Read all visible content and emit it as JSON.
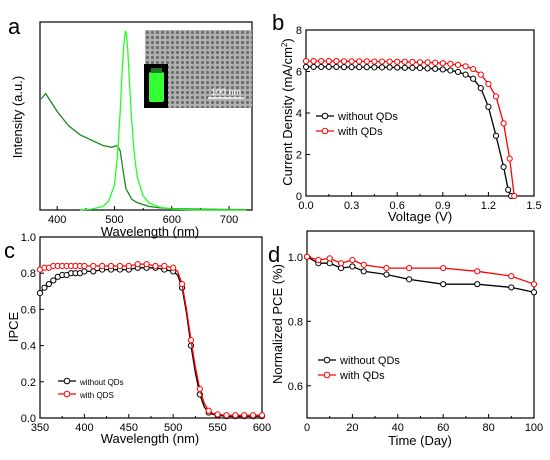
{
  "colors": {
    "emission": "#22ff22",
    "absorption": "#1a8a1a",
    "black_series": "#000000",
    "red_series": "#ff0000",
    "inset_glow": "#33ff33"
  },
  "panels": {
    "a": {
      "letter": "a",
      "inset_scale_label": "100 nm"
    },
    "b": {
      "letter": "b"
    },
    "c": {
      "letter": "c"
    },
    "d": {
      "letter": "d"
    }
  },
  "chart_data": [
    {
      "id": "a",
      "type": "line",
      "xlabel": "Wavelength (nm)",
      "ylabel": "Intensity (a.u.)",
      "xlim": [
        370,
        740
      ],
      "ylim": [
        0,
        1.05
      ],
      "xticks": [
        400,
        500,
        600,
        700
      ],
      "yticks": [],
      "series": [
        {
          "color_key": "absorption",
          "x": [
            372,
            380,
            390,
            400,
            420,
            440,
            460,
            480,
            495,
            505,
            510,
            515,
            520,
            530,
            540,
            560,
            580,
            600,
            650,
            700,
            730
          ],
          "y": [
            0.62,
            0.65,
            0.6,
            0.55,
            0.47,
            0.42,
            0.39,
            0.36,
            0.35,
            0.36,
            0.33,
            0.22,
            0.12,
            0.06,
            0.04,
            0.02,
            0.012,
            0.008,
            0.005,
            0.003,
            0.002
          ]
        },
        {
          "color_key": "emission",
          "x": [
            440,
            460,
            480,
            490,
            500,
            505,
            510,
            513,
            516,
            519,
            521,
            523,
            526,
            530,
            535,
            540,
            550,
            560,
            580,
            600,
            650,
            730
          ],
          "y": [
            0.0,
            0.005,
            0.02,
            0.05,
            0.14,
            0.3,
            0.55,
            0.75,
            0.92,
            1.0,
            0.98,
            0.9,
            0.72,
            0.5,
            0.3,
            0.18,
            0.08,
            0.04,
            0.015,
            0.005,
            0.0,
            0.0
          ]
        }
      ]
    },
    {
      "id": "b",
      "type": "line",
      "xlabel": "Voltage (V)",
      "ylabel": "Current Density (mA/cm",
      "ylabel_sup": "2",
      "ylabel_end": ")",
      "xlim": [
        0,
        1.5
      ],
      "ylim": [
        0,
        8
      ],
      "xticks": [
        0.0,
        0.3,
        0.6,
        0.9,
        1.2,
        1.5
      ],
      "xtick_labels": [
        "0.0",
        "0.3",
        "0.6",
        "0.9",
        "1.2",
        "1.5"
      ],
      "yticks": [
        0,
        2,
        4,
        6,
        8
      ],
      "legend": "center-left",
      "series": [
        {
          "name": "without QDs",
          "color_key": "black_series",
          "x": [
            0,
            0.05,
            0.1,
            0.15,
            0.2,
            0.25,
            0.3,
            0.35,
            0.4,
            0.45,
            0.5,
            0.55,
            0.6,
            0.65,
            0.7,
            0.75,
            0.8,
            0.85,
            0.9,
            0.95,
            1.0,
            1.05,
            1.1,
            1.15,
            1.2,
            1.25,
            1.3,
            1.33,
            1.35
          ],
          "y": [
            6.22,
            6.22,
            6.22,
            6.22,
            6.22,
            6.21,
            6.21,
            6.21,
            6.21,
            6.2,
            6.2,
            6.2,
            6.19,
            6.18,
            6.18,
            6.17,
            6.15,
            6.13,
            6.1,
            6.05,
            5.98,
            5.85,
            5.65,
            5.2,
            4.3,
            2.9,
            1.4,
            0.3,
            0
          ]
        },
        {
          "name": "with QDs",
          "color_key": "red_series",
          "x": [
            0,
            0.05,
            0.1,
            0.15,
            0.2,
            0.25,
            0.3,
            0.35,
            0.4,
            0.45,
            0.5,
            0.55,
            0.6,
            0.65,
            0.7,
            0.75,
            0.8,
            0.85,
            0.9,
            0.95,
            1.0,
            1.05,
            1.1,
            1.15,
            1.2,
            1.25,
            1.3,
            1.34,
            1.37
          ],
          "y": [
            6.5,
            6.5,
            6.5,
            6.5,
            6.5,
            6.49,
            6.49,
            6.49,
            6.49,
            6.48,
            6.48,
            6.48,
            6.47,
            6.47,
            6.46,
            6.45,
            6.44,
            6.42,
            6.4,
            6.37,
            6.32,
            6.25,
            6.12,
            5.85,
            5.4,
            4.8,
            3.5,
            1.8,
            0
          ]
        }
      ]
    },
    {
      "id": "c",
      "type": "line",
      "xlabel": "Wavelength (nm)",
      "ylabel": "IPCE",
      "xlim": [
        350,
        600
      ],
      "ylim": [
        0,
        1.0
      ],
      "xticks": [
        350,
        400,
        450,
        500,
        550,
        600
      ],
      "yticks": [
        0.0,
        0.2,
        0.4,
        0.6,
        0.8,
        1.0
      ],
      "ytick_labels": [
        "0.0",
        "0.2",
        "0.4",
        "0.6",
        "0.8",
        "1.0"
      ],
      "legend": "bottom-left",
      "series": [
        {
          "name": "without QDs",
          "color_key": "black_series",
          "x": [
            350,
            355,
            360,
            365,
            370,
            375,
            380,
            385,
            390,
            395,
            400,
            410,
            420,
            430,
            440,
            450,
            460,
            470,
            480,
            490,
            500,
            505,
            510,
            515,
            520,
            525,
            530,
            535,
            540,
            545,
            550,
            560,
            570,
            580,
            590,
            600
          ],
          "y": [
            0.69,
            0.72,
            0.74,
            0.76,
            0.78,
            0.79,
            0.79,
            0.8,
            0.8,
            0.8,
            0.81,
            0.81,
            0.82,
            0.82,
            0.82,
            0.82,
            0.83,
            0.83,
            0.83,
            0.82,
            0.81,
            0.79,
            0.72,
            0.58,
            0.4,
            0.25,
            0.13,
            0.06,
            0.03,
            0.02,
            0.015,
            0.01,
            0.01,
            0.01,
            0.01,
            0.01
          ]
        },
        {
          "name": "with QDS",
          "color_key": "red_series",
          "x": [
            350,
            355,
            360,
            365,
            370,
            375,
            380,
            385,
            390,
            395,
            400,
            410,
            420,
            430,
            440,
            450,
            460,
            470,
            480,
            490,
            500,
            505,
            510,
            515,
            520,
            525,
            530,
            535,
            540,
            545,
            550,
            560,
            570,
            580,
            590,
            600
          ],
          "y": [
            0.82,
            0.83,
            0.83,
            0.84,
            0.84,
            0.84,
            0.84,
            0.84,
            0.84,
            0.84,
            0.84,
            0.84,
            0.84,
            0.84,
            0.84,
            0.84,
            0.85,
            0.85,
            0.84,
            0.84,
            0.83,
            0.81,
            0.74,
            0.6,
            0.43,
            0.28,
            0.16,
            0.08,
            0.04,
            0.025,
            0.02,
            0.015,
            0.015,
            0.015,
            0.015,
            0.015
          ]
        }
      ]
    },
    {
      "id": "d",
      "type": "line",
      "xlabel": "Time (Day)",
      "ylabel": "Normalized PCE (%)",
      "xlim": [
        0,
        100
      ],
      "ylim": [
        0.5,
        1.08
      ],
      "xticks": [
        0,
        20,
        40,
        60,
        80,
        100
      ],
      "yticks": [
        0.6,
        0.8,
        1.0
      ],
      "ytick_labels": [
        "0.6",
        "0.8",
        "1.0"
      ],
      "legend": "center-left",
      "series": [
        {
          "name": "without QDs",
          "color_key": "black_series",
          "x": [
            0,
            5,
            10,
            15,
            20,
            25,
            35,
            45,
            60,
            75,
            90,
            100
          ],
          "y": [
            1.0,
            0.98,
            0.98,
            0.965,
            0.97,
            0.955,
            0.945,
            0.93,
            0.915,
            0.915,
            0.905,
            0.89
          ]
        },
        {
          "name": "with QDs",
          "color_key": "red_series",
          "x": [
            0,
            5,
            10,
            15,
            20,
            25,
            35,
            45,
            60,
            75,
            90,
            100
          ],
          "y": [
            1.0,
            0.99,
            0.995,
            0.98,
            0.99,
            0.975,
            0.965,
            0.965,
            0.965,
            0.955,
            0.94,
            0.915
          ]
        }
      ]
    }
  ]
}
